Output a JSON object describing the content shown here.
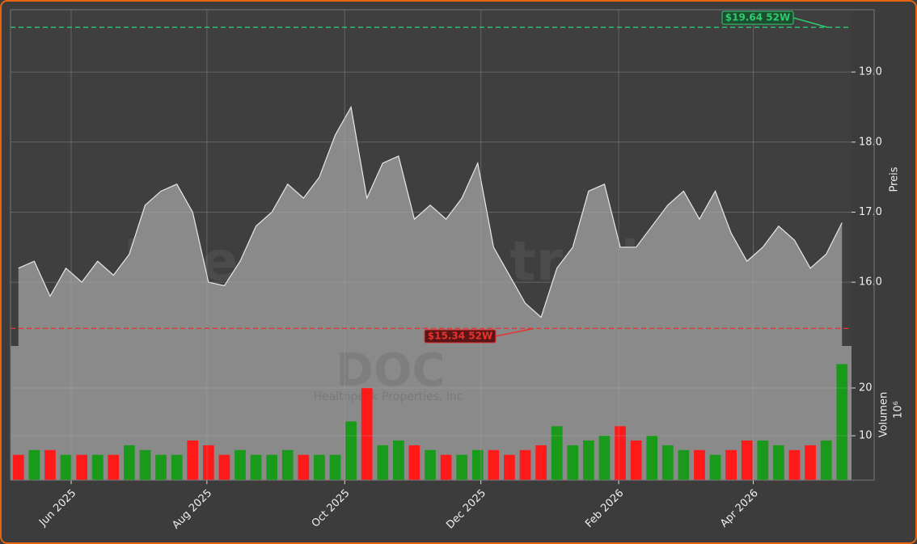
{
  "chart_data": [
    {
      "type": "area",
      "y_label": "Preis",
      "watermark": [
        "boersignale.trade",
        "DOC",
        "Healthpeak Properties, Inc"
      ],
      "color": "#8a8a8a",
      "line_color": "#e8e8e8",
      "values": [
        16.2,
        16.3,
        15.8,
        16.2,
        16.0,
        16.3,
        16.1,
        16.4,
        17.1,
        17.3,
        17.4,
        17.0,
        16.0,
        15.95,
        16.3,
        16.8,
        17.0,
        17.4,
        17.2,
        17.5,
        18.1,
        18.5,
        17.2,
        17.7,
        17.8,
        16.9,
        17.1,
        16.9,
        17.2,
        17.7,
        16.5,
        16.1,
        15.7,
        15.5,
        16.2,
        16.5,
        17.3,
        17.4,
        16.5,
        16.5,
        16.8,
        17.1,
        17.3,
        16.9,
        17.3,
        16.7,
        16.3,
        16.5,
        16.8,
        16.6,
        16.2,
        16.4,
        16.85
      ],
      "xlim": [
        -0.5,
        52.6
      ],
      "ylim": [
        15.09,
        19.89
      ],
      "yticks": [
        {
          "value": 16,
          "label": "16.0"
        },
        {
          "value": 17,
          "label": "17.0"
        },
        {
          "value": 18,
          "label": "18.0"
        },
        {
          "value": 19,
          "label": "19.0"
        }
      ],
      "annotations": [
        {
          "label": "$19.64 52W",
          "value": 19.64,
          "color": "#2ecc71"
        },
        {
          "label": "$15.34 52W",
          "value": 15.34,
          "color": "#e8322e"
        }
      ],
      "grid": true
    },
    {
      "type": "bar",
      "y_label": "Volumen",
      "multiplier": "10⁶",
      "values": [
        6,
        7,
        7,
        6,
        6,
        6,
        6,
        8,
        7,
        6,
        6,
        9,
        8,
        6,
        7,
        6,
        6,
        7,
        6,
        6,
        6,
        13,
        20,
        8,
        9,
        8,
        7,
        6,
        6,
        7,
        7,
        6,
        7,
        8,
        12,
        8,
        9,
        10,
        12,
        9,
        10,
        8,
        7,
        7,
        6,
        7,
        9,
        9,
        8,
        7,
        8,
        9,
        25
      ],
      "colors": [
        "#ff1a1a",
        "#1a9a1a",
        "#ff1a1a",
        "#1a9a1a",
        "#ff1a1a",
        "#1a9a1a",
        "#ff1a1a",
        "#1a9a1a",
        "#1a9a1a",
        "#1a9a1a",
        "#1a9a1a",
        "#ff1a1a",
        "#ff1a1a",
        "#ff1a1a",
        "#1a9a1a",
        "#1a9a1a",
        "#1a9a1a",
        "#1a9a1a",
        "#ff1a1a",
        "#1a9a1a",
        "#1a9a1a",
        "#1a9a1a",
        "#ff1a1a",
        "#1a9a1a",
        "#1a9a1a",
        "#ff1a1a",
        "#1a9a1a",
        "#ff1a1a",
        "#1a9a1a",
        "#1a9a1a",
        "#ff1a1a",
        "#ff1a1a",
        "#ff1a1a",
        "#ff1a1a",
        "#1a9a1a",
        "#1a9a1a",
        "#1a9a1a",
        "#1a9a1a",
        "#ff1a1a",
        "#ff1a1a",
        "#1a9a1a",
        "#1a9a1a",
        "#1a9a1a",
        "#ff1a1a",
        "#1a9a1a",
        "#ff1a1a",
        "#ff1a1a",
        "#1a9a1a",
        "#1a9a1a",
        "#ff1a1a",
        "#ff1a1a",
        "#1a9a1a",
        "#1a9a1a"
      ],
      "xlim": [
        -0.5,
        52.6
      ],
      "ylim": [
        0.7,
        28.8
      ],
      "yticks": [
        10,
        20
      ],
      "xticks": [
        {
          "value": 3.33,
          "label": "Jun 2025"
        },
        {
          "value": 11.9,
          "label": "Aug 2025"
        },
        {
          "value": 20.6,
          "label": "Oct 2025"
        },
        {
          "value": 29.2,
          "label": "Dec 2025"
        },
        {
          "value": 37.9,
          "label": "Feb 2026"
        },
        {
          "value": 46.4,
          "label": "Apr 2026"
        }
      ],
      "grid": true
    }
  ]
}
